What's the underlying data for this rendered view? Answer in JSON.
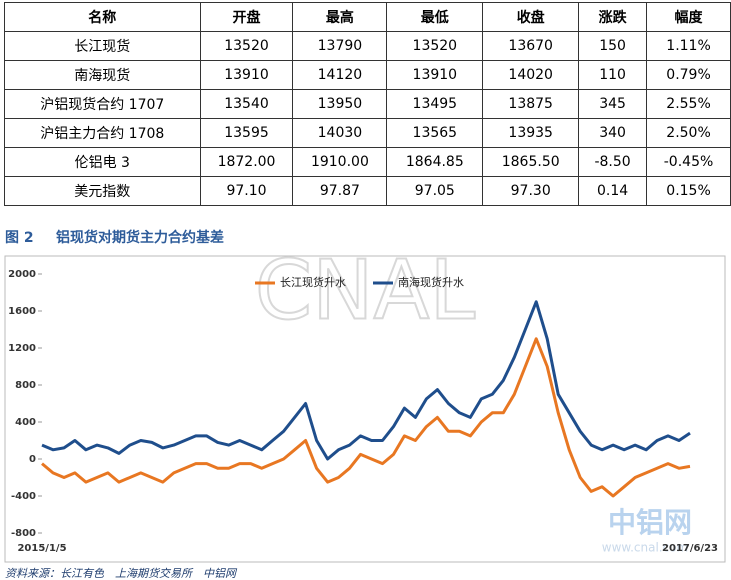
{
  "table": {
    "header": [
      "名称",
      "开盘",
      "最高",
      "最低",
      "收盘",
      "涨跌",
      "幅度"
    ],
    "rows": [
      [
        "长江现货",
        "13520",
        "13790",
        "13520",
        "13670",
        "150",
        "1.11%"
      ],
      [
        "南海现货",
        "13910",
        "14120",
        "13910",
        "14020",
        "110",
        "0.79%"
      ],
      [
        "沪铝现货合约 1707",
        "13540",
        "13950",
        "13495",
        "13875",
        "345",
        "2.55%"
      ],
      [
        "沪铝主力合约 1708",
        "13595",
        "14030",
        "13565",
        "13935",
        "340",
        "2.50%"
      ],
      [
        "伦铝电 3",
        "1872.00",
        "1910.00",
        "1864.85",
        "1865.50",
        "-8.50",
        "-0.45%"
      ],
      [
        "美元指数",
        "97.10",
        "97.87",
        "97.05",
        "97.30",
        "0.14",
        "0.15%"
      ]
    ]
  },
  "figure_caption": {
    "label": "图 2",
    "title": "铝现货对期货主力合约基差"
  },
  "chart_data": {
    "type": "line",
    "x": [
      "2015/1/5",
      null,
      null,
      null,
      null,
      null,
      null,
      null,
      null,
      null,
      null,
      null,
      null,
      null,
      null,
      null,
      null,
      null,
      null,
      null,
      null,
      null,
      null,
      null,
      null,
      null,
      null,
      null,
      null,
      null,
      null,
      null,
      null,
      null,
      null,
      null,
      null,
      null,
      null,
      null,
      null,
      null,
      null,
      null,
      null,
      null,
      null,
      null,
      null,
      null,
      null,
      null,
      null,
      null,
      null,
      null,
      null,
      null,
      null,
      "2017/6/23"
    ],
    "series": [
      {
        "name": "长江现货升水",
        "color": "#e87722",
        "values": [
          -50,
          -150,
          -200,
          -150,
          -250,
          -200,
          -150,
          -250,
          -200,
          -150,
          -200,
          -250,
          -150,
          -100,
          -50,
          -50,
          -100,
          -100,
          -50,
          -50,
          -100,
          -50,
          0,
          100,
          200,
          -100,
          -250,
          -200,
          -100,
          50,
          0,
          -50,
          50,
          250,
          200,
          350,
          450,
          300,
          300,
          250,
          400,
          500,
          500,
          700,
          1000,
          1300,
          1000,
          500,
          100,
          -200,
          -350,
          -300,
          -400,
          -300,
          -200,
          -150,
          -100,
          -50,
          -100,
          -80
        ]
      },
      {
        "name": "南海现货升水",
        "color": "#1f4e8c",
        "values": [
          150,
          100,
          120,
          200,
          100,
          150,
          120,
          60,
          150,
          200,
          180,
          120,
          150,
          200,
          250,
          250,
          180,
          150,
          200,
          150,
          100,
          200,
          300,
          450,
          600,
          200,
          0,
          100,
          150,
          250,
          200,
          200,
          350,
          550,
          450,
          650,
          750,
          600,
          500,
          450,
          650,
          700,
          850,
          1100,
          1400,
          1700,
          1300,
          700,
          500,
          300,
          150,
          100,
          150,
          100,
          150,
          100,
          200,
          250,
          200,
          280
        ]
      }
    ],
    "ylim": [
      -800,
      2000
    ],
    "yticks": [
      -800,
      -400,
      0,
      400,
      800,
      1200,
      1600,
      2000
    ],
    "grid": false,
    "legend": "top"
  },
  "watermarks": [
    "CNAL",
    "中铝网",
    "www.cnal.com"
  ],
  "source": "资料来源：长江有色　上海期货交易所　中铝网"
}
